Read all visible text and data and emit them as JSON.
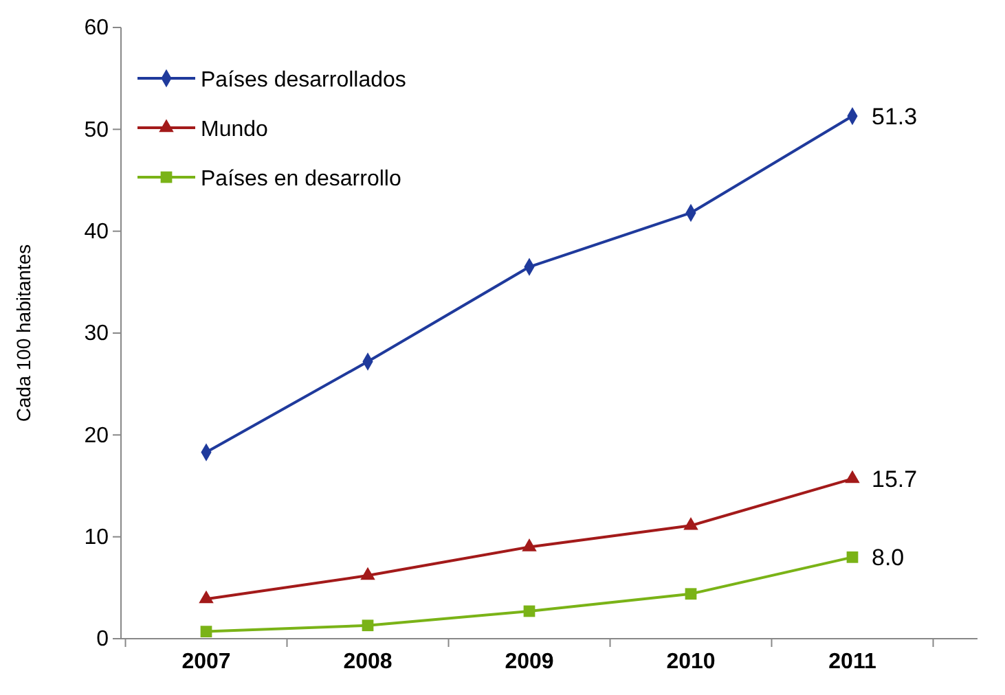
{
  "chart_data": {
    "type": "line",
    "ylabel": "Cada 100 habitantes",
    "categories": [
      "2007",
      "2008",
      "2009",
      "2010",
      "2011"
    ],
    "ylim": [
      0,
      60
    ],
    "yticks": [
      0,
      10,
      20,
      30,
      40,
      50,
      60
    ],
    "grid": false,
    "legend": "top left",
    "series": [
      {
        "name": "Países desarrollados",
        "color": "#1f3a9c",
        "marker": "diamond",
        "values": [
          18.3,
          27.2,
          36.5,
          41.8,
          51.3
        ],
        "value_labels": [
          null,
          null,
          null,
          null,
          "51.3"
        ]
      },
      {
        "name": "Mundo",
        "color": "#a31a1a",
        "marker": "triangle",
        "values": [
          3.9,
          6.2,
          9.0,
          11.1,
          15.7
        ],
        "value_labels": [
          null,
          null,
          null,
          null,
          "15.7"
        ]
      },
      {
        "name": "Países en desarrollo",
        "color": "#7ab317",
        "marker": "square",
        "values": [
          0.7,
          1.3,
          2.7,
          4.4,
          8.0
        ],
        "value_labels": [
          null,
          null,
          null,
          null,
          "8.0"
        ]
      }
    ]
  }
}
